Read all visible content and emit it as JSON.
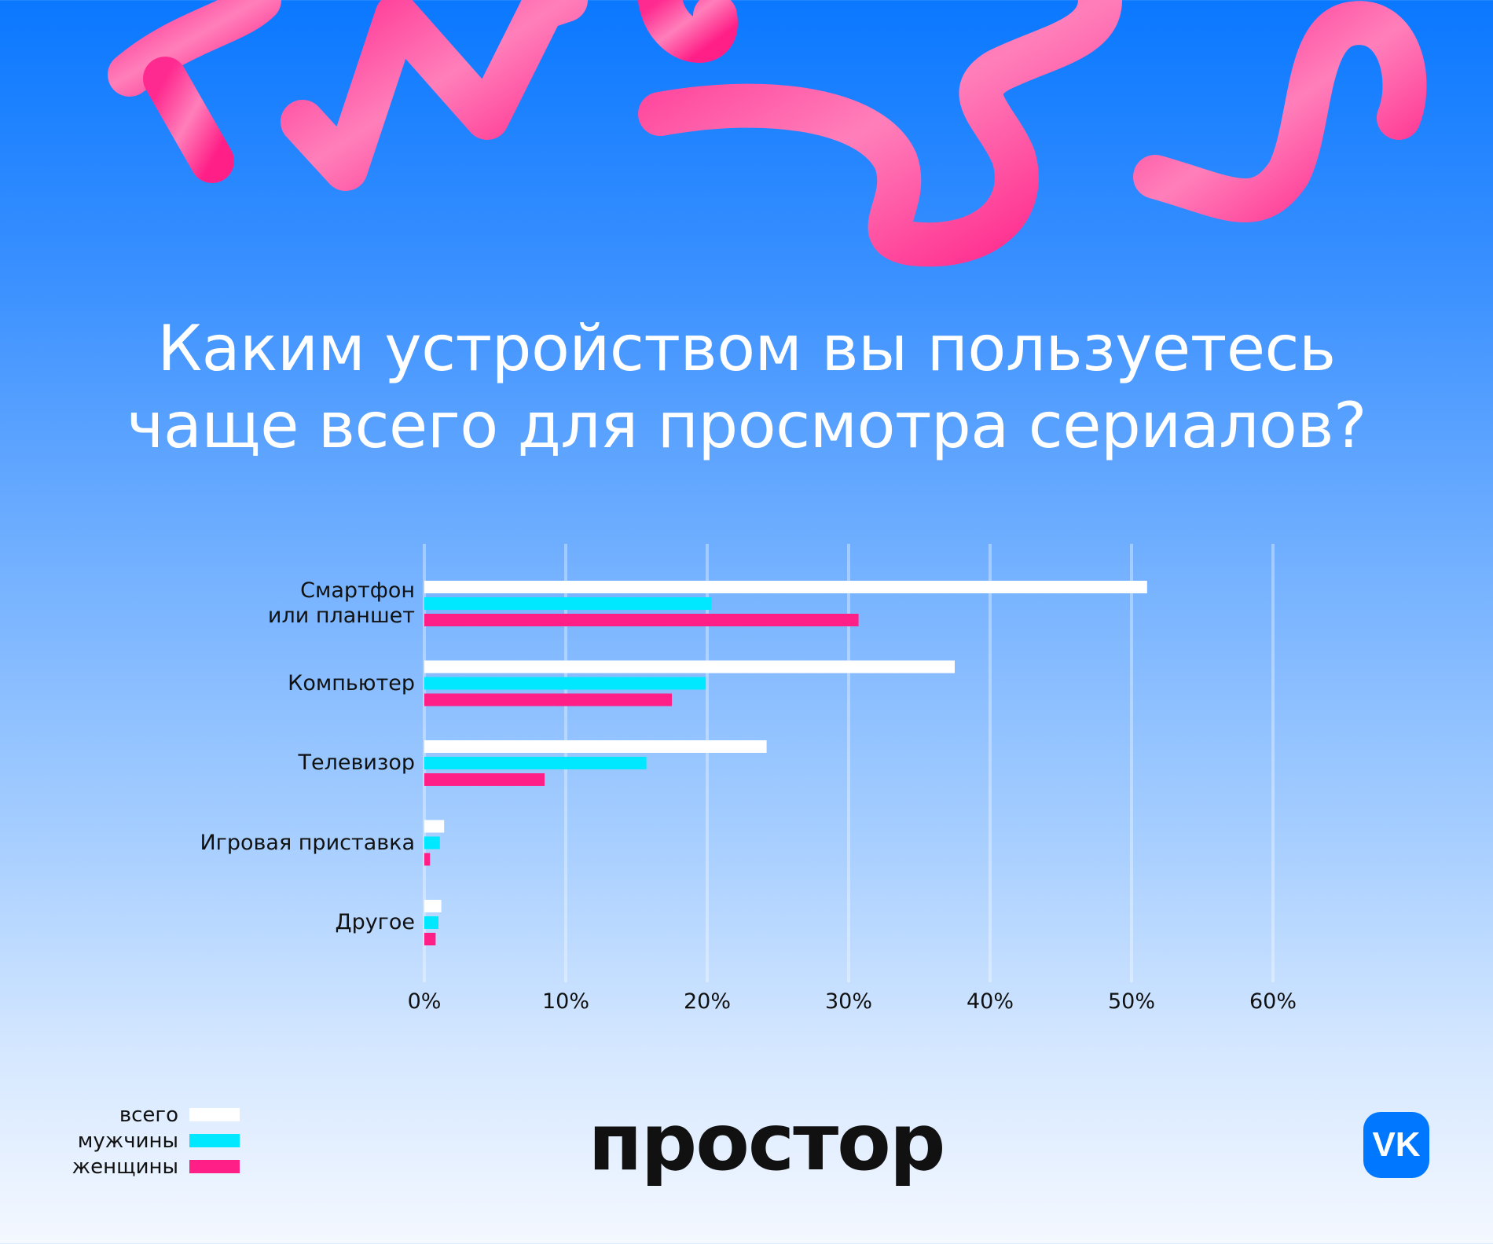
{
  "title_lines": [
    "Каким устройством вы пользуетесь",
    "чаще всего для просмотра сериалов?"
  ],
  "brand": "простор",
  "vk_logo": "VK",
  "colors": {
    "total": "#ffffff",
    "men": "#00e8ff",
    "women": "#ff1f87",
    "background_top": "#0a78ff"
  },
  "chart_data": {
    "type": "bar",
    "orientation": "horizontal",
    "categories": [
      "Смартфон\nили планшет",
      "Компьютер",
      "Телевизор",
      "Игровая приставка",
      "Другое"
    ],
    "series": [
      {
        "name": "всего",
        "values": [
          51.1,
          37.5,
          24.2,
          1.4,
          1.2
        ]
      },
      {
        "name": "мужчины",
        "values": [
          20.3,
          19.9,
          15.7,
          1.1,
          1.0
        ]
      },
      {
        "name": "женщины",
        "values": [
          30.7,
          17.5,
          8.5,
          0.4,
          0.8
        ]
      }
    ],
    "xticks": [
      "0%",
      "10%",
      "20%",
      "30%",
      "40%",
      "50%",
      "60%"
    ],
    "xlim": [
      0,
      60
    ],
    "grid": true,
    "legend_position": "bottom-left"
  }
}
